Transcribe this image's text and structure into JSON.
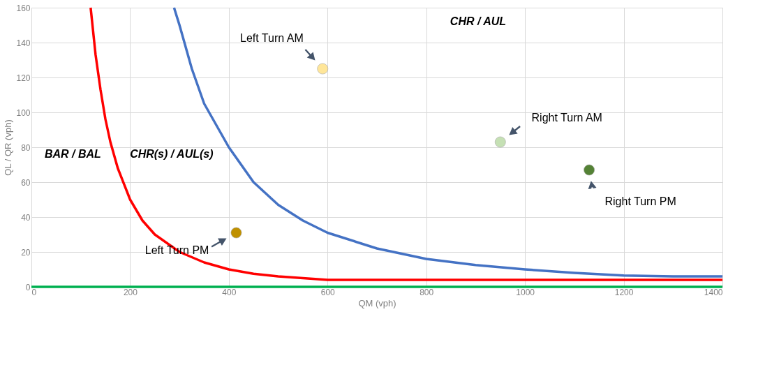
{
  "chart_data": {
    "type": "line",
    "xlabel": "QM (vph)",
    "ylabel": "QL / QR (vph)",
    "xlim": [
      0,
      1400
    ],
    "xticks": [
      0,
      200,
      400,
      600,
      800,
      1000,
      1200,
      1400
    ],
    "ylim": [
      0,
      160
    ],
    "yticks": [
      0,
      20,
      40,
      60,
      80,
      100,
      120,
      140,
      160
    ],
    "grid": true,
    "legend": false,
    "line_style": "solid",
    "annotations": [
      "CHR / AUL",
      "BAR / BAL",
      "CHR(s) / AUL(s)"
    ],
    "series": [
      {
        "color": "#ff0000",
        "x": [
          120,
          130,
          140,
          150,
          160,
          175,
          200,
          225,
          250,
          300,
          350,
          400,
          450,
          500,
          550,
          600,
          700,
          1400
        ],
        "values": [
          160,
          133,
          113,
          96,
          83,
          68,
          50,
          38,
          30,
          20,
          14,
          10,
          7.5,
          6,
          5,
          4,
          4,
          4
        ]
      },
      {
        "color": "#4472c4",
        "x": [
          289,
          300,
          325,
          350,
          400,
          450,
          500,
          550,
          600,
          700,
          800,
          900,
          1000,
          1100,
          1200,
          1300,
          1400
        ],
        "values": [
          160,
          150,
          125,
          105,
          80,
          60,
          47,
          38,
          31,
          22,
          16,
          12.5,
          10,
          8,
          6.5,
          6,
          6
        ]
      },
      {
        "color": "#00b050",
        "x": [
          0,
          1400
        ],
        "values": [
          0,
          0
        ]
      },
      {
        "type": "scatter",
        "name": "Left Turn AM",
        "color": "#ffe699",
        "x": [
          590
        ],
        "values": [
          125
        ]
      },
      {
        "type": "scatter",
        "name": "Right Turn AM",
        "color": "#c5e0b4",
        "x": [
          950
        ],
        "values": [
          83
        ]
      },
      {
        "type": "scatter",
        "name": "Right Turn PM",
        "color": "#548235",
        "x": [
          1130
        ],
        "values": [
          67
        ]
      },
      {
        "type": "scatter",
        "name": "Left Turn PM",
        "color": "#bf9000",
        "x": [
          415
        ],
        "values": [
          31
        ]
      }
    ]
  }
}
